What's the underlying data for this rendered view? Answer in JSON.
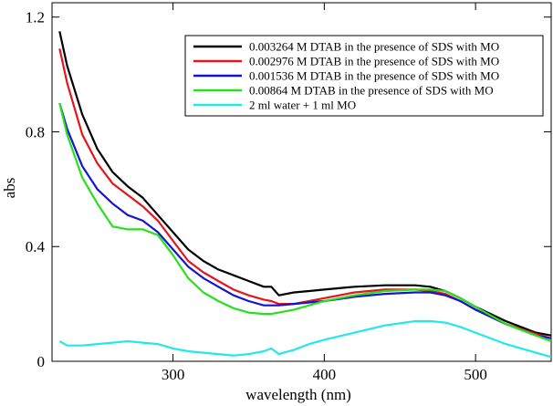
{
  "chart_data": {
    "type": "line",
    "title": "",
    "xlabel": "wavelength (nm)",
    "ylabel": "abs",
    "xlim": [
      220,
      550
    ],
    "ylim": [
      0,
      1.25
    ],
    "xticks": [
      300,
      400,
      500
    ],
    "yticks": [
      0,
      0.4,
      0.8,
      1.2
    ],
    "xtick_labels": [
      "300",
      "400",
      "500"
    ],
    "ytick_labels": [
      "0",
      "0.4",
      "0.8",
      "1.2"
    ],
    "grid": false,
    "legend_position": "top-right",
    "series": [
      {
        "name": "0.003264 M DTAB in the presence of SDS with MO",
        "color": "#000000",
        "x": [
          225,
          230,
          240,
          250,
          260,
          270,
          280,
          290,
          300,
          310,
          320,
          330,
          340,
          350,
          360,
          365,
          370,
          380,
          390,
          400,
          420,
          440,
          460,
          470,
          480,
          490,
          500,
          520,
          540,
          550
        ],
        "y": [
          1.15,
          1.03,
          0.86,
          0.74,
          0.66,
          0.61,
          0.57,
          0.51,
          0.45,
          0.39,
          0.35,
          0.32,
          0.3,
          0.28,
          0.26,
          0.26,
          0.23,
          0.24,
          0.245,
          0.25,
          0.26,
          0.265,
          0.265,
          0.26,
          0.245,
          0.22,
          0.19,
          0.14,
          0.1,
          0.09
        ]
      },
      {
        "name": "0.002976 M DTAB in the presence of SDS with MO",
        "color": "#e8141b",
        "x": [
          225,
          230,
          240,
          250,
          260,
          270,
          280,
          290,
          300,
          310,
          320,
          330,
          340,
          350,
          360,
          365,
          370,
          380,
          390,
          400,
          420,
          440,
          460,
          470,
          480,
          490,
          500,
          520,
          540,
          550
        ],
        "y": [
          1.09,
          0.97,
          0.79,
          0.69,
          0.62,
          0.58,
          0.54,
          0.49,
          0.42,
          0.35,
          0.31,
          0.28,
          0.25,
          0.23,
          0.215,
          0.21,
          0.2,
          0.2,
          0.21,
          0.22,
          0.24,
          0.25,
          0.25,
          0.245,
          0.235,
          0.21,
          0.18,
          0.13,
          0.095,
          0.08
        ]
      },
      {
        "name": "0.001536 M DTAB in the presence of SDS with MO",
        "color": "#1414d2",
        "x": [
          225,
          230,
          240,
          250,
          260,
          270,
          280,
          290,
          300,
          310,
          320,
          330,
          340,
          350,
          360,
          365,
          370,
          380,
          390,
          400,
          420,
          440,
          460,
          470,
          480,
          490,
          500,
          520,
          540,
          550
        ],
        "y": [
          0.9,
          0.81,
          0.68,
          0.6,
          0.55,
          0.51,
          0.49,
          0.45,
          0.39,
          0.33,
          0.29,
          0.26,
          0.23,
          0.21,
          0.195,
          0.195,
          0.195,
          0.2,
          0.205,
          0.21,
          0.225,
          0.235,
          0.24,
          0.24,
          0.23,
          0.21,
          0.18,
          0.13,
          0.09,
          0.08
        ]
      },
      {
        "name": "0.00864 M DTAB in the presence of SDS with MO",
        "color": "#28e01c",
        "x": [
          225,
          230,
          240,
          250,
          260,
          270,
          280,
          290,
          300,
          310,
          320,
          330,
          340,
          350,
          360,
          365,
          370,
          380,
          390,
          400,
          420,
          440,
          460,
          470,
          480,
          490,
          500,
          520,
          540,
          550
        ],
        "y": [
          0.9,
          0.79,
          0.64,
          0.55,
          0.47,
          0.46,
          0.46,
          0.44,
          0.37,
          0.29,
          0.24,
          0.21,
          0.185,
          0.17,
          0.165,
          0.165,
          0.17,
          0.18,
          0.195,
          0.21,
          0.23,
          0.245,
          0.25,
          0.25,
          0.245,
          0.22,
          0.19,
          0.13,
          0.09,
          0.07
        ]
      },
      {
        "name": "2 ml water + 1 ml MO",
        "color": "#22e8e8",
        "x": [
          225,
          230,
          240,
          250,
          260,
          270,
          280,
          290,
          300,
          310,
          320,
          330,
          340,
          350,
          360,
          365,
          370,
          380,
          390,
          400,
          420,
          440,
          460,
          470,
          480,
          490,
          500,
          520,
          540,
          550
        ],
        "y": [
          0.07,
          0.055,
          0.055,
          0.06,
          0.065,
          0.07,
          0.065,
          0.06,
          0.045,
          0.035,
          0.03,
          0.025,
          0.02,
          0.025,
          0.035,
          0.045,
          0.025,
          0.04,
          0.06,
          0.075,
          0.1,
          0.125,
          0.14,
          0.14,
          0.135,
          0.12,
          0.1,
          0.06,
          0.03,
          0.015
        ]
      }
    ]
  }
}
